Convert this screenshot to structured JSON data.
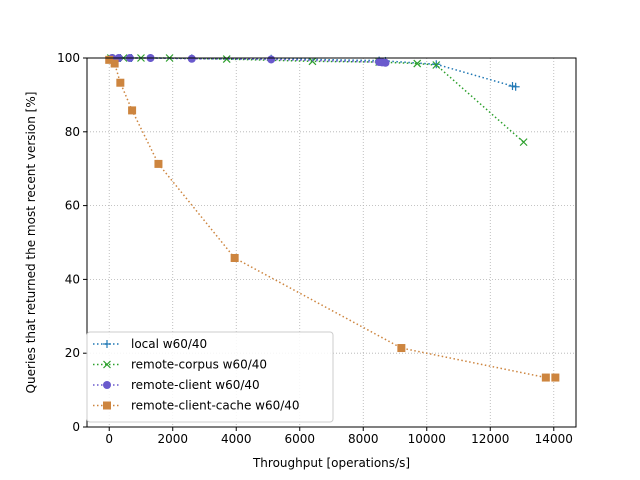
{
  "chart_data": {
    "type": "line",
    "xlabel": "Throughput [operations/s]",
    "ylabel": "Queries that returned the most recent version [%]",
    "xlim": [
      -700,
      14700
    ],
    "ylim": [
      0,
      100
    ],
    "xticks": [
      0,
      2000,
      4000,
      6000,
      8000,
      10000,
      12000,
      14000
    ],
    "yticks": [
      0,
      20,
      40,
      60,
      80,
      100
    ],
    "grid": true,
    "legend_position": "lower-left",
    "series": [
      {
        "name": "local w60/40",
        "color": "#1f77b4",
        "marker": "plus",
        "linestyle": "dotted",
        "points": [
          [
            100,
            100
          ],
          [
            350,
            100
          ],
          [
            700,
            100
          ],
          [
            1300,
            100
          ],
          [
            2600,
            99.9
          ],
          [
            5100,
            99.8
          ],
          [
            8500,
            99.3
          ],
          [
            8700,
            99.2
          ],
          [
            10300,
            98.3
          ],
          [
            12700,
            92.4
          ],
          [
            12800,
            92.2
          ]
        ]
      },
      {
        "name": "remote-corpus w60/40",
        "color": "#2ca02c",
        "marker": "x",
        "linestyle": "dotted",
        "points": [
          [
            50,
            100
          ],
          [
            450,
            100
          ],
          [
            1000,
            100
          ],
          [
            1900,
            100
          ],
          [
            3700,
            99.7
          ],
          [
            6400,
            99.1
          ],
          [
            8500,
            98.9
          ],
          [
            9700,
            98.5
          ],
          [
            10300,
            98.1
          ],
          [
            13050,
            77.2
          ]
        ]
      },
      {
        "name": "remote-client w60/40",
        "color": "#6a5acd",
        "marker": "circle",
        "linestyle": "dotted",
        "points": [
          [
            90,
            100
          ],
          [
            300,
            100
          ],
          [
            650,
            100
          ],
          [
            1300,
            100
          ],
          [
            2600,
            99.8
          ],
          [
            5100,
            99.6
          ],
          [
            8500,
            98.9
          ],
          [
            8600,
            98.8
          ],
          [
            8700,
            98.7
          ]
        ]
      },
      {
        "name": "remote-client-cache w60/40",
        "color": "#cd853f",
        "marker": "square",
        "linestyle": "dotted",
        "points": [
          [
            0,
            99.5
          ],
          [
            170,
            98.5
          ],
          [
            350,
            93.3
          ],
          [
            720,
            85.8
          ],
          [
            1550,
            71.3
          ],
          [
            3950,
            45.8
          ],
          [
            9200,
            21.4
          ],
          [
            13750,
            13.4
          ],
          [
            14050,
            13.4
          ]
        ]
      }
    ]
  }
}
